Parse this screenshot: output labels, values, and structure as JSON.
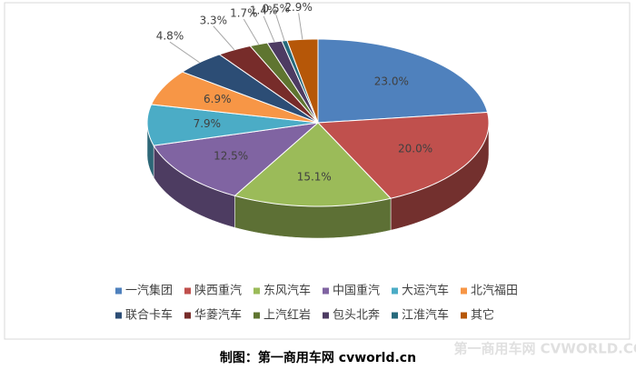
{
  "chart_data": {
    "type": "pie",
    "categories": [
      "一汽集团",
      "陕西重汽",
      "东风汽车",
      "中国重汽",
      "大运汽车",
      "北汽福田",
      "联合卡车",
      "华菱汽车",
      "上汽红岩",
      "包头北奔",
      "江淮汽车",
      "其它"
    ],
    "values": [
      23.0,
      20.0,
      15.1,
      12.5,
      7.9,
      6.9,
      4.8,
      3.3,
      1.7,
      1.4,
      0.5,
      2.9
    ],
    "value_labels": [
      "23.0%",
      "20.0%",
      "15.1%",
      "12.5%",
      "7.9%",
      "6.9%",
      "4.8%",
      "3.3%",
      "1.7%",
      "1.4%",
      "0.5%",
      "2.9%"
    ],
    "colors": [
      "#4f81bd",
      "#c0504d",
      "#9bbb59",
      "#8064a2",
      "#4bacc6",
      "#f79646",
      "#2c4d75",
      "#772c2a",
      "#5f7530",
      "#4d3b62",
      "#276a7c",
      "#b65708"
    ],
    "caption": "制图：第一商用车网 cvworld.cn",
    "watermark": "第一商用车网 CVWORLD.COM"
  }
}
